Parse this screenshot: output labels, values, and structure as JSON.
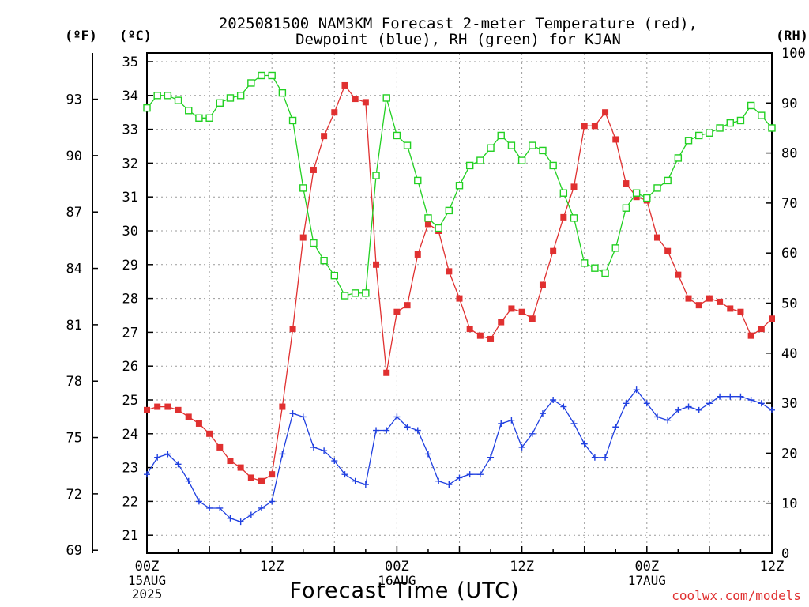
{
  "title": {
    "line1": "2025081500 NAM3KM Forecast 2-meter Temperature (red),",
    "line2": "Dewpoint (blue), RH (green) for KJAN"
  },
  "units": {
    "left_f": "(ºF)",
    "left_c": "(ºC)",
    "right_rh": "(RH)"
  },
  "xlabel": "Forecast Time (UTC)",
  "credit": "coolwx.com/models",
  "x_ticks": [
    {
      "h": 0,
      "label": "00Z",
      "sub": [
        "15AUG",
        "2025"
      ]
    },
    {
      "h": 12,
      "label": "12Z",
      "sub": []
    },
    {
      "h": 24,
      "label": "00Z",
      "sub": [
        "16AUG"
      ]
    },
    {
      "h": 36,
      "label": "12Z",
      "sub": []
    },
    {
      "h": 48,
      "label": "00Z",
      "sub": [
        "17AUG"
      ]
    },
    {
      "h": 60,
      "label": "12Z",
      "sub": []
    }
  ],
  "chart_data": {
    "type": "line",
    "x_unit": "forecast hour",
    "xlim": [
      0,
      60
    ],
    "celsius_ylim": [
      20.5,
      35.4
    ],
    "fahrenheit_ticks": [
      69,
      72,
      75,
      78,
      81,
      84,
      87,
      90,
      93
    ],
    "celsius_ticks": [
      21,
      22,
      23,
      24,
      25,
      26,
      27,
      28,
      29,
      30,
      31,
      32,
      33,
      34,
      35
    ],
    "rh_ylim": [
      0,
      100
    ],
    "rh_ticks": [
      0,
      10,
      20,
      30,
      40,
      50,
      60,
      70,
      80,
      90,
      100
    ],
    "grid": true,
    "series": [
      {
        "name": "Temperature",
        "axis": "celsius",
        "color": "#e03030",
        "marker": "filled-square",
        "x": [
          0,
          1,
          2,
          3,
          4,
          5,
          6,
          7,
          8,
          9,
          10,
          11,
          12,
          13,
          14,
          15,
          16,
          17,
          18,
          19,
          20,
          21,
          22,
          23,
          24,
          25,
          26,
          27,
          28,
          29,
          30,
          31,
          32,
          33,
          34,
          35,
          36,
          37,
          38,
          39,
          40,
          41,
          42,
          43,
          44,
          45,
          46,
          47,
          48,
          49,
          50,
          51,
          52,
          53,
          54,
          55,
          56,
          57,
          58,
          59,
          60
        ],
        "values": [
          24.7,
          24.8,
          24.8,
          24.7,
          24.5,
          24.3,
          24.0,
          23.6,
          23.2,
          23.0,
          22.7,
          22.6,
          22.8,
          24.8,
          27.1,
          29.8,
          31.8,
          32.8,
          33.5,
          34.3,
          33.9,
          33.8,
          29.0,
          25.8,
          27.6,
          27.8,
          29.3,
          30.2,
          30.0,
          28.8,
          28.0,
          27.1,
          26.9,
          26.8,
          27.3,
          27.7,
          27.6,
          27.4,
          28.4,
          29.4,
          30.4,
          31.3,
          33.1,
          33.1,
          33.5,
          32.7,
          31.4,
          31.0,
          30.9,
          29.8,
          29.4,
          28.7,
          28.0,
          27.8,
          28.0,
          27.9,
          27.7,
          27.6,
          26.9,
          27.1,
          27.4
        ]
      },
      {
        "name": "Dewpoint",
        "axis": "celsius",
        "color": "#2040e0",
        "marker": "plus",
        "x": [
          0,
          1,
          2,
          3,
          4,
          5,
          6,
          7,
          8,
          9,
          10,
          11,
          12,
          13,
          14,
          15,
          16,
          17,
          18,
          19,
          20,
          21,
          22,
          23,
          24,
          25,
          26,
          27,
          28,
          29,
          30,
          31,
          32,
          33,
          34,
          35,
          36,
          37,
          38,
          39,
          40,
          41,
          42,
          43,
          44,
          45,
          46,
          47,
          48,
          49,
          50,
          51,
          52,
          53,
          54,
          55,
          56,
          57,
          58,
          59,
          60
        ],
        "values": [
          22.8,
          23.3,
          23.4,
          23.1,
          22.6,
          22.0,
          21.8,
          21.8,
          21.5,
          21.4,
          21.6,
          21.8,
          22.0,
          23.4,
          24.6,
          24.5,
          23.6,
          23.5,
          23.2,
          22.8,
          22.6,
          22.5,
          24.1,
          24.1,
          24.5,
          24.2,
          24.1,
          23.4,
          22.6,
          22.5,
          22.7,
          22.8,
          22.8,
          23.3,
          24.3,
          24.4,
          23.6,
          24.0,
          24.6,
          25.0,
          24.8,
          24.3,
          23.7,
          23.3,
          23.3,
          24.2,
          24.9,
          25.3,
          24.9,
          24.5,
          24.4,
          24.7,
          24.8,
          24.7,
          24.9,
          25.1,
          25.1,
          25.1,
          25.0,
          24.9,
          24.7
        ]
      },
      {
        "name": "RH",
        "axis": "rh",
        "color": "#22d022",
        "marker": "open-square",
        "x": [
          0,
          1,
          2,
          3,
          4,
          5,
          6,
          7,
          8,
          9,
          10,
          11,
          12,
          13,
          14,
          15,
          16,
          17,
          18,
          19,
          20,
          21,
          22,
          23,
          24,
          25,
          26,
          27,
          28,
          29,
          30,
          31,
          32,
          33,
          34,
          35,
          36,
          37,
          38,
          39,
          40,
          41,
          42,
          43,
          44,
          45,
          46,
          47,
          48,
          49,
          50,
          51,
          52,
          53,
          54,
          55,
          56,
          57,
          58,
          59,
          60
        ],
        "values": [
          89,
          91.5,
          91.5,
          90.5,
          88.5,
          87,
          87,
          90,
          91,
          91.5,
          94,
          95.5,
          95.5,
          92,
          86.5,
          73,
          62,
          58.5,
          55.5,
          51.5,
          52,
          52,
          75.5,
          91,
          83.5,
          81.5,
          74.5,
          67,
          65,
          68.5,
          73.5,
          77.5,
          78.5,
          81,
          83.5,
          81.5,
          78.5,
          81.5,
          80.5,
          77.5,
          72,
          67,
          58,
          57,
          56,
          61,
          69,
          72,
          71,
          73,
          74.5,
          79,
          82.5,
          83.5,
          84,
          85,
          86,
          86.5,
          89.5,
          87.5,
          85
        ]
      }
    ]
  }
}
